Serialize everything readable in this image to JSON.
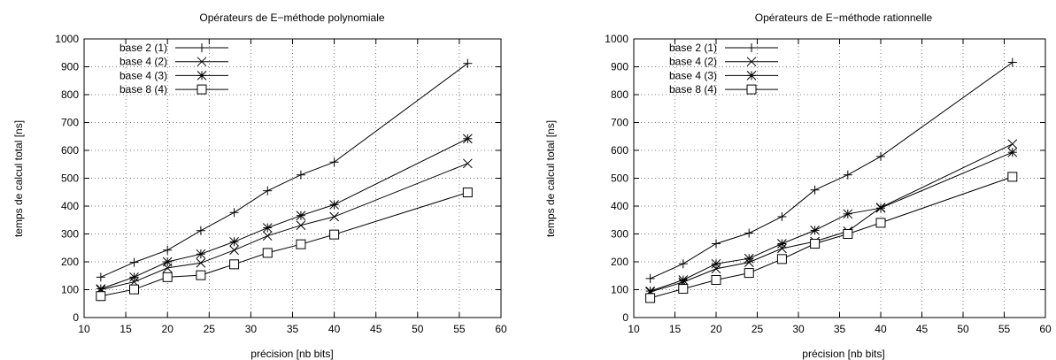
{
  "chart_data": [
    {
      "type": "line",
      "title": "Opérateurs de E−méthode polynomiale",
      "xlabel": "précision [nb bits]",
      "ylabel": "temps de calcul total [ns]",
      "xlim": [
        10,
        60
      ],
      "ylim": [
        0,
        1000
      ],
      "xticks": [
        "10",
        "15",
        "20",
        "25",
        "30",
        "35",
        "40",
        "45",
        "50",
        "55",
        "60"
      ],
      "yticks": [
        "0",
        "100",
        "200",
        "300",
        "400",
        "500",
        "600",
        "700",
        "800",
        "900",
        "1000"
      ],
      "grid": true,
      "legend_position": "top-left",
      "series": [
        {
          "name": "base 2 (1)",
          "marker": "plus",
          "x": [
            12,
            16,
            20,
            24,
            28,
            32,
            36,
            40,
            56
          ],
          "values": [
            145,
            198,
            242,
            312,
            377,
            455,
            512,
            558,
            912
          ]
        },
        {
          "name": "base 4 (2)",
          "marker": "cross",
          "x": [
            12,
            16,
            20,
            24,
            28,
            32,
            36,
            40,
            56
          ],
          "values": [
            100,
            128,
            178,
            196,
            242,
            293,
            331,
            362,
            553
          ]
        },
        {
          "name": "base 4 (3)",
          "marker": "star",
          "x": [
            12,
            16,
            20,
            24,
            28,
            32,
            36,
            40,
            56
          ],
          "values": [
            103,
            145,
            200,
            228,
            272,
            322,
            366,
            405,
            642
          ]
        },
        {
          "name": "base 8 (4)",
          "marker": "square",
          "x": [
            12,
            16,
            20,
            24,
            28,
            32,
            36,
            40,
            56
          ],
          "values": [
            77,
            101,
            145,
            152,
            191,
            232,
            263,
            298,
            449
          ]
        }
      ]
    },
    {
      "type": "line",
      "title": "Opérateurs de E−méthode rationnelle",
      "xlabel": "précision [nb bits]",
      "ylabel": "temps de calcul total [ns]",
      "xlim": [
        10,
        60
      ],
      "ylim": [
        0,
        1000
      ],
      "xticks": [
        "10",
        "15",
        "20",
        "25",
        "30",
        "35",
        "40",
        "45",
        "50",
        "55",
        "60"
      ],
      "yticks": [
        "0",
        "100",
        "200",
        "300",
        "400",
        "500",
        "600",
        "700",
        "800",
        "900",
        "1000"
      ],
      "grid": true,
      "legend_position": "top-left",
      "series": [
        {
          "name": "base 2 (1)",
          "marker": "plus",
          "x": [
            12,
            16,
            20,
            24,
            28,
            32,
            36,
            40,
            56
          ],
          "values": [
            140,
            193,
            265,
            303,
            362,
            458,
            512,
            578,
            916
          ]
        },
        {
          "name": "base 4 (2)",
          "marker": "cross",
          "x": [
            12,
            16,
            20,
            24,
            28,
            32,
            36,
            40,
            56
          ],
          "values": [
            92,
            127,
            175,
            198,
            248,
            273,
            310,
            395,
            623
          ]
        },
        {
          "name": "base 4 (3)",
          "marker": "star",
          "x": [
            12,
            16,
            20,
            24,
            28,
            32,
            36,
            40,
            56
          ],
          "values": [
            95,
            135,
            193,
            212,
            265,
            313,
            372,
            393,
            593
          ]
        },
        {
          "name": "base 8 (4)",
          "marker": "square",
          "x": [
            12,
            16,
            20,
            24,
            28,
            32,
            36,
            40,
            56
          ],
          "values": [
            70,
            103,
            135,
            160,
            210,
            265,
            300,
            340,
            505
          ]
        }
      ]
    }
  ]
}
